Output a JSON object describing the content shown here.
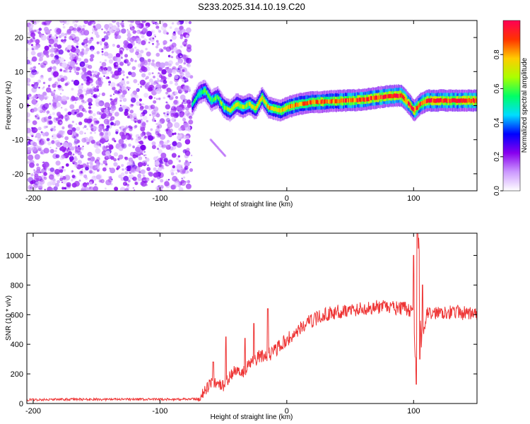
{
  "title": "S233.2025.314.10.19.C20",
  "chart_data": [
    {
      "type": "heatmap",
      "xlabel": "Height of straight line (km)",
      "ylabel": "Frequency (Hz)",
      "xlim": [
        -205,
        150
      ],
      "ylim": [
        -25,
        25
      ],
      "xticks": [
        -200,
        -100,
        0,
        100
      ],
      "xtick_labels": [
        "-200",
        "-100",
        "0",
        "100"
      ],
      "yticks": [
        20,
        10,
        0,
        -10,
        -20
      ],
      "ytick_labels": [
        "20",
        "10",
        "0",
        "-10",
        "-20"
      ],
      "colorbar": {
        "label": "Normalized spectral amplitude",
        "range": [
          0,
          1
        ],
        "ticks": [
          0.0,
          0.2,
          0.4,
          0.6,
          0.8
        ],
        "tick_labels": [
          "0.0",
          "0.2",
          "0.4",
          "0.6",
          "0.8"
        ],
        "colors": [
          "#ffffff",
          "#cc99ff",
          "#8800ee",
          "#0000ff",
          "#00ddff",
          "#00ff66",
          "#aaff00",
          "#ffcc00",
          "#ff3300",
          "#ff0055"
        ]
      },
      "noise_region": {
        "x_from": -205,
        "x_to": -75,
        "amplitude": 0.25
      },
      "ridge": {
        "x": [
          -75,
          -70,
          -65,
          -60,
          -55,
          -50,
          -45,
          -40,
          -35,
          -30,
          -25,
          -20,
          -15,
          -10,
          -5,
          0,
          10,
          20,
          30,
          40,
          50,
          60,
          70,
          80,
          90,
          95,
          100,
          105,
          110,
          120,
          130,
          140,
          150
        ],
        "freq": [
          0.2,
          3.5,
          4.5,
          1.5,
          2.5,
          -0.5,
          -1.5,
          0.5,
          -0.5,
          0.5,
          -1.0,
          2.5,
          -0.5,
          -1.0,
          -1.5,
          -0.5,
          0.5,
          1.0,
          1.2,
          1.4,
          1.5,
          1.8,
          2.3,
          2.8,
          3.0,
          1.0,
          -1.5,
          0.5,
          1.5,
          1.5,
          1.5,
          1.5,
          1.5
        ],
        "amplitude": [
          0.5,
          0.55,
          0.6,
          0.55,
          0.6,
          0.65,
          0.65,
          0.7,
          0.7,
          0.65,
          0.7,
          0.75,
          0.75,
          0.7,
          0.75,
          0.8,
          0.8,
          0.85,
          0.85,
          0.85,
          0.9,
          0.9,
          0.9,
          0.95,
          0.95,
          0.9,
          0.85,
          0.9,
          0.95,
          0.95,
          0.95,
          0.95,
          0.95
        ]
      }
    },
    {
      "type": "line",
      "xlabel": "Height of straight line (km)",
      "ylabel": "SNR (10 * v/v)",
      "xlim": [
        -205,
        150
      ],
      "ylim": [
        0,
        1150
      ],
      "xticks": [
        -200,
        -100,
        0,
        100
      ],
      "xtick_labels": [
        "-200",
        "-100",
        "0",
        "100"
      ],
      "yticks": [
        0,
        200,
        400,
        600,
        800,
        1000
      ],
      "ytick_labels": [
        "0",
        "200",
        "400",
        "600",
        "800",
        "1000"
      ],
      "color": "#ee3333",
      "series": [
        {
          "name": "SNR",
          "x": [
            -205,
            -180,
            -150,
            -120,
            -90,
            -70,
            -65,
            -60,
            -55,
            -50,
            -45,
            -40,
            -35,
            -30,
            -25,
            -20,
            -15,
            -10,
            -5,
            0,
            5,
            10,
            15,
            20,
            25,
            30,
            40,
            50,
            60,
            70,
            80,
            90,
            95,
            100,
            102,
            104,
            106,
            110,
            120,
            130,
            140,
            150
          ],
          "y": [
            25,
            28,
            28,
            28,
            28,
            30,
            80,
            140,
            140,
            120,
            180,
            230,
            200,
            260,
            300,
            320,
            330,
            350,
            390,
            430,
            460,
            500,
            540,
            560,
            580,
            600,
            620,
            630,
            640,
            650,
            650,
            640,
            640,
            600,
            200,
            1150,
            400,
            600,
            620,
            620,
            610,
            600
          ],
          "noise": 40,
          "spikes": [
            {
              "x": -58,
              "y": 280
            },
            {
              "x": -48,
              "y": 450
            },
            {
              "x": -33,
              "y": 440
            },
            {
              "x": -26,
              "y": 540
            },
            {
              "x": -15,
              "y": 640
            },
            {
              "x": 100,
              "y": 1000
            },
            {
              "x": 102,
              "y": 130
            },
            {
              "x": 103,
              "y": 1150
            },
            {
              "x": 105,
              "y": 300
            },
            {
              "x": 107,
              "y": 800
            }
          ]
        }
      ]
    }
  ]
}
